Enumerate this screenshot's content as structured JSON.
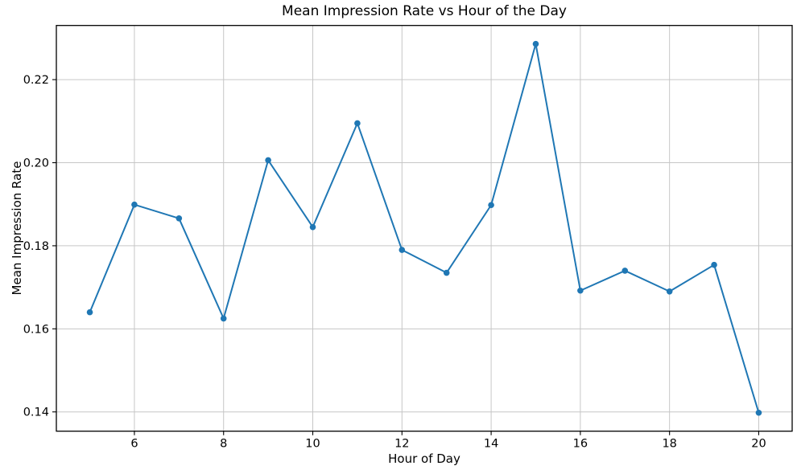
{
  "chart_data": {
    "type": "line",
    "title": "Mean Impression Rate vs Hour of the Day",
    "xlabel": "Hour of Day",
    "ylabel": "Mean Impression Rate",
    "series": [
      {
        "name": "Mean Impression Rate",
        "x": [
          5,
          6,
          7,
          8,
          9,
          10,
          11,
          12,
          13,
          14,
          15,
          16,
          17,
          18,
          19,
          20
        ],
        "y": [
          0.164,
          0.1899,
          0.1866,
          0.1625,
          0.2006,
          0.1845,
          0.2095,
          0.179,
          0.1735,
          0.1898,
          0.2286,
          0.1692,
          0.174,
          0.169,
          0.1754,
          0.1398
        ]
      }
    ],
    "xlim": [
      4.25,
      20.75
    ],
    "ylim": [
      0.13536,
      0.23304
    ],
    "xticks": [
      6,
      8,
      10,
      12,
      14,
      16,
      18,
      20
    ],
    "xtick_labels": [
      "6",
      "8",
      "10",
      "12",
      "14",
      "16",
      "18",
      "20"
    ],
    "yticks": [
      0.14,
      0.16,
      0.18,
      0.2,
      0.22
    ],
    "ytick_labels": [
      "0.14",
      "0.16",
      "0.18",
      "0.20",
      "0.22"
    ],
    "grid": true,
    "legend": "none",
    "line_color": "#1f77b4",
    "marker": "circle",
    "grid_color": "#c6c6c6",
    "spine_color": "#000000",
    "background_color": "#ffffff"
  }
}
